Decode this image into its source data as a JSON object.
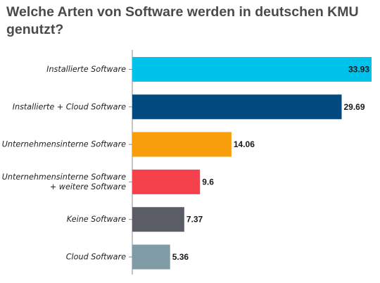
{
  "chart_data": {
    "type": "bar",
    "orientation": "horizontal",
    "title": "Welche Arten von Software werden in deutschen KMU genutzt?",
    "categories": [
      [
        "Installierte Software"
      ],
      [
        "Installierte + Cloud Software"
      ],
      [
        "Unternehmensinterne Software"
      ],
      [
        "Unternehmensinterne Software",
        "+ weitere Software"
      ],
      [
        "Keine Software"
      ],
      [
        "Cloud Software"
      ]
    ],
    "values": [
      33.93,
      29.69,
      14.06,
      9.6,
      7.37,
      5.36
    ],
    "value_labels": [
      "33.93",
      "29.69",
      "14.06",
      "9.6",
      "7.37",
      "5.36"
    ],
    "colors": [
      "#00c3ec",
      "#004a80",
      "#f89e0a",
      "#f5414b",
      "#5a5d66",
      "#7f9ba5"
    ],
    "xlim": [
      0,
      33.93
    ],
    "grid": false,
    "legend": "none"
  }
}
